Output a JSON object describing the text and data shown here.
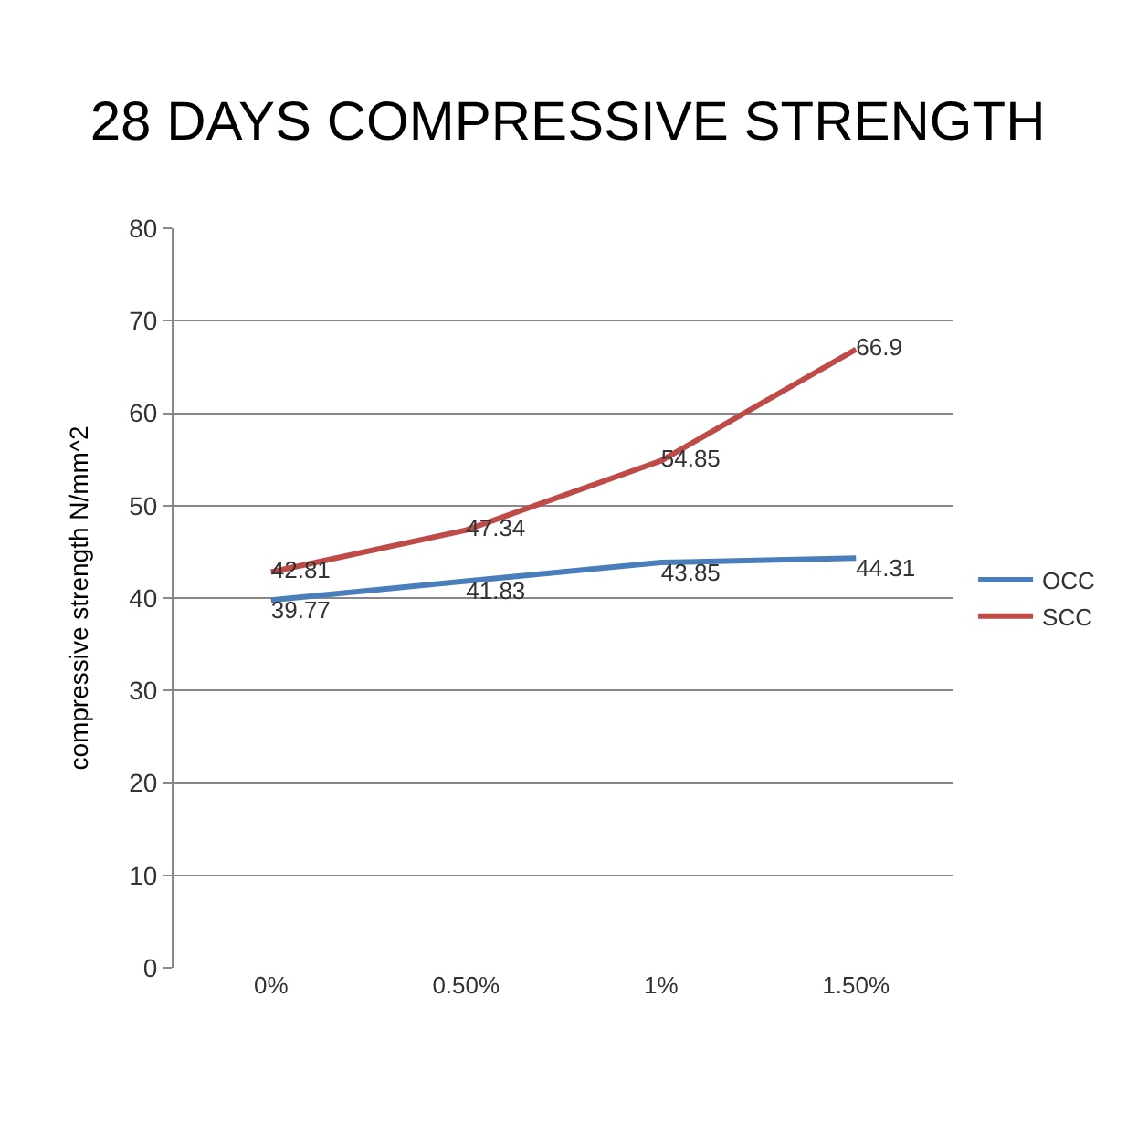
{
  "chart_data": {
    "type": "line",
    "title": "28 DAYS COMPRESSIVE STRENGTH",
    "ylabel": "compressive strength N/mm^2",
    "categories": [
      "0%",
      "0.50%",
      "1%",
      "1.50%"
    ],
    "series": [
      {
        "name": "OCC",
        "color": "#4a7ebb",
        "values": [
          39.77,
          41.83,
          43.85,
          44.31
        ]
      },
      {
        "name": "SCC",
        "color": "#be4b48",
        "values": [
          42.81,
          47.34,
          54.85,
          66.9
        ]
      }
    ],
    "ylim": [
      0,
      80
    ],
    "yticks": [
      0,
      10,
      20,
      30,
      40,
      50,
      60,
      70,
      80
    ],
    "grid": "y",
    "legend": "right",
    "marker": "none",
    "line_style": "solid",
    "data_labels": true
  }
}
